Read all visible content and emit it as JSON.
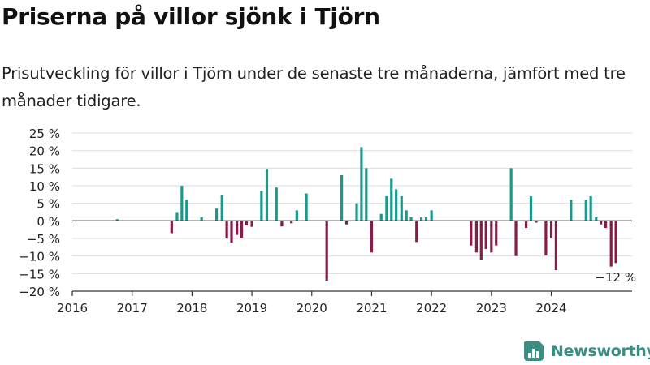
{
  "header": {
    "title": "Priserna på villor sjönk i Tjörn",
    "subtitle": "Prisutveckling för villor i Tjörn under de senaste tre månaderna, jämfört med tre månader tidigare."
  },
  "brand": {
    "name": "Newsworthy",
    "icon": "newsworthy-logo-icon"
  },
  "colors": {
    "positive": "#1a9a8c",
    "negative": "#8b1a4a",
    "axis": "#333333",
    "grid": "#dddddd",
    "brand": "#3a8f82"
  },
  "chart_data": {
    "type": "bar",
    "title": "",
    "xlabel": "",
    "ylabel": "",
    "ylim": [
      -20,
      25
    ],
    "y_ticks": [
      25,
      20,
      15,
      10,
      5,
      0,
      -5,
      -10,
      -15,
      -20
    ],
    "y_tick_labels": [
      "25 %",
      "20 %",
      "15 %",
      "10 %",
      "5 %",
      "0 %",
      "−5 %",
      "−10 %",
      "−15 %",
      "−20 %"
    ],
    "x_tick_labels": [
      "2016",
      "2017",
      "2018",
      "2019",
      "2020",
      "2021",
      "2022",
      "2023",
      "2024"
    ],
    "x_range": [
      2016.0,
      2025.35
    ],
    "grid": true,
    "annotation": {
      "label": "−12 %",
      "target": "last"
    },
    "x": [
      2016.75,
      2017.66,
      2017.75,
      2017.83,
      2017.91,
      2018.16,
      2018.41,
      2018.5,
      2018.58,
      2018.66,
      2018.75,
      2018.83,
      2018.91,
      2019.0,
      2019.16,
      2019.25,
      2019.41,
      2019.5,
      2019.66,
      2019.75,
      2019.91,
      2020.25,
      2020.5,
      2020.58,
      2020.75,
      2020.83,
      2020.91,
      2021.0,
      2021.16,
      2021.25,
      2021.33,
      2021.41,
      2021.5,
      2021.58,
      2021.66,
      2021.75,
      2021.83,
      2021.91,
      2022.0,
      2022.66,
      2022.75,
      2022.83,
      2022.91,
      2023.0,
      2023.08,
      2023.33,
      2023.41,
      2023.58,
      2023.66,
      2023.75,
      2023.91,
      2024.0,
      2024.08,
      2024.33,
      2024.58,
      2024.66,
      2024.75,
      2024.83,
      2024.91,
      2025.0,
      2025.08
    ],
    "values": [
      0.5,
      -3.5,
      2.5,
      10.0,
      6.0,
      1.0,
      3.5,
      7.3,
      -5.0,
      -6.2,
      -4.0,
      -4.8,
      -1.3,
      -1.7,
      8.5,
      14.8,
      9.5,
      -1.6,
      -0.7,
      3.0,
      7.8,
      -17.0,
      13.0,
      -1.0,
      5.0,
      21.0,
      15.0,
      -9.0,
      2.0,
      7.0,
      12.0,
      9.0,
      7.0,
      3.0,
      1.0,
      -6.0,
      1.0,
      1.0,
      3.0,
      -7.0,
      -9.0,
      -11.0,
      -8.0,
      -9.0,
      -7.0,
      15.0,
      -10.0,
      -2.0,
      7.0,
      -0.5,
      -9.8,
      -5.0,
      -14.0,
      6.0,
      6.0,
      7.0,
      1.0,
      -1.0,
      -2.0,
      -13.0,
      -12.0
    ]
  }
}
